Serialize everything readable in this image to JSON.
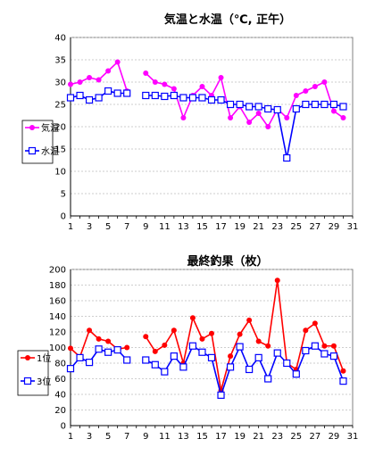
{
  "chart_data": [
    {
      "type": "line",
      "title": "気温と水温（℃, 正午）",
      "x": [
        1,
        2,
        3,
        4,
        5,
        6,
        7,
        8,
        9,
        10,
        11,
        12,
        13,
        14,
        15,
        16,
        17,
        18,
        19,
        20,
        21,
        22,
        23,
        24,
        25,
        26,
        27,
        28,
        29,
        30,
        31
      ],
      "xticks": [
        1,
        3,
        5,
        7,
        9,
        11,
        13,
        15,
        17,
        19,
        21,
        23,
        25,
        27,
        29,
        31
      ],
      "xlim": [
        1,
        31
      ],
      "ylim": [
        0,
        40
      ],
      "yticks": [
        0,
        5,
        10,
        15,
        20,
        25,
        30,
        35,
        40
      ],
      "yticklabels": [
        "0",
        "5",
        "10",
        "15",
        "20",
        "25",
        "30",
        "35",
        "40"
      ],
      "grid": true,
      "legend_position": "left",
      "series": [
        {
          "name": "気温",
          "color": "#ff00ff",
          "marker": "circle",
          "values": [
            29.5,
            30,
            31,
            30.5,
            32.5,
            34.5,
            28,
            null,
            32,
            30,
            29.5,
            28.5,
            22,
            27,
            29,
            27,
            31,
            22,
            24.5,
            21,
            23,
            20,
            24,
            22,
            27,
            28,
            29,
            30,
            23.5,
            22,
            null
          ]
        },
        {
          "name": "水温",
          "color": "#0000ff",
          "marker": "square",
          "values": [
            26.5,
            27,
            26,
            26.5,
            28,
            27.5,
            27.5,
            null,
            27,
            27,
            26.8,
            27,
            26.5,
            26.5,
            26.5,
            26,
            26,
            25,
            25,
            24.5,
            24.5,
            24,
            23.8,
            13,
            24,
            25,
            25,
            25,
            25,
            24.5,
            null
          ]
        }
      ]
    },
    {
      "type": "line",
      "title": "最終釣果（枚）",
      "x": [
        1,
        2,
        3,
        4,
        5,
        6,
        7,
        8,
        9,
        10,
        11,
        12,
        13,
        14,
        15,
        16,
        17,
        18,
        19,
        20,
        21,
        22,
        23,
        24,
        25,
        26,
        27,
        28,
        29,
        30,
        31
      ],
      "xticks": [
        1,
        3,
        5,
        7,
        9,
        11,
        13,
        15,
        17,
        19,
        21,
        23,
        25,
        27,
        29,
        31
      ],
      "xlim": [
        1,
        31
      ],
      "ylim": [
        0,
        200
      ],
      "yticks": [
        0,
        20,
        40,
        60,
        80,
        100,
        120,
        140,
        160,
        180,
        200
      ],
      "yticklabels": [
        "0",
        "20",
        "40",
        "60",
        "80",
        "100",
        "120",
        "140",
        "160",
        "180",
        "200"
      ],
      "grid": true,
      "legend_position": "left",
      "series": [
        {
          "name": "1位",
          "color": "#ff0000",
          "marker": "circle",
          "values": [
            99,
            88,
            122,
            111,
            108,
            98,
            100,
            null,
            114,
            95,
            103,
            122,
            80,
            138,
            111,
            118,
            45,
            89,
            117,
            135,
            108,
            102,
            186,
            80,
            72,
            122,
            131,
            102,
            102,
            70,
            null
          ]
        },
        {
          "name": "3位",
          "color": "#0000ff",
          "marker": "square",
          "values": [
            73,
            87,
            81,
            98,
            94,
            97,
            84,
            null,
            84,
            78,
            69,
            89,
            75,
            102,
            94,
            87,
            39,
            75,
            101,
            72,
            87,
            60,
            93,
            80,
            66,
            96,
            102,
            92,
            89,
            57,
            null
          ]
        }
      ]
    }
  ]
}
